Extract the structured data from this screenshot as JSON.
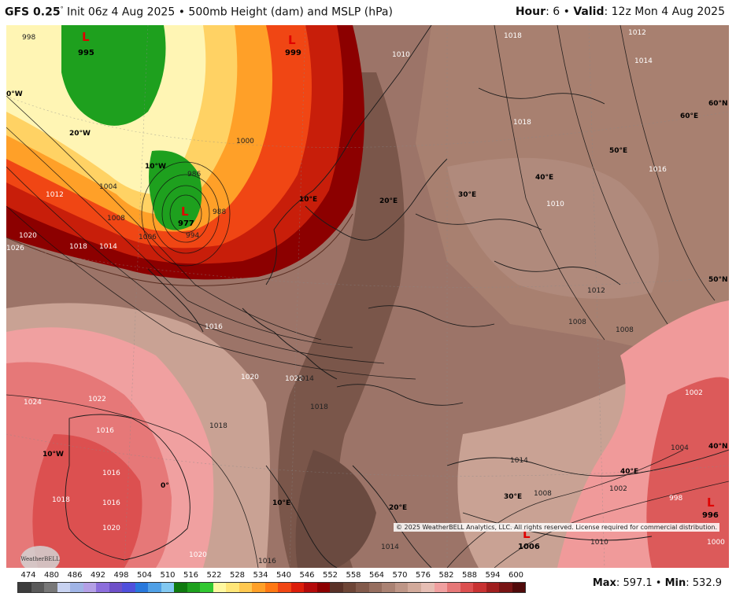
{
  "header": {
    "model": "GFS 0.25",
    "init_text": "Init 06z 4 Aug 2025",
    "separator": "•",
    "product": "500mb Height (dam) and MSLP (hPa)",
    "hour_label": "Hour",
    "hour_value": "6",
    "valid_label": "Valid",
    "valid_value": "12z Mon 4 Aug 2025"
  },
  "map": {
    "copyright": "© 2025 WeatherBELL Analytics, LLC. All rights reserved. License required for commercial distribution.",
    "logo_text": "WeatherBELL",
    "lows": [
      {
        "symbol": "L",
        "value": "995"
      },
      {
        "symbol": "L",
        "value": "999"
      },
      {
        "symbol": "L",
        "value": "977"
      },
      {
        "symbol": "L",
        "value": "1006"
      },
      {
        "symbol": "L",
        "value": "996"
      }
    ],
    "isobar_labels": [
      "998",
      "1018",
      "1012",
      "1014",
      "1010",
      "1000",
      "1004",
      "1008",
      "1012",
      "1020",
      "1018",
      "1014",
      "1006",
      "994",
      "988",
      "986",
      "1022",
      "1016",
      "1020",
      "1022",
      "1024",
      "1018",
      "1016",
      "1016",
      "1016",
      "1020",
      "1018",
      "1014",
      "1018",
      "1016",
      "1008",
      "1008",
      "1012",
      "1018",
      "1010",
      "1014",
      "1014",
      "1008",
      "1002",
      "998",
      "1000",
      "1004",
      "1002",
      "1020",
      "1026",
      "1016",
      "1010"
    ],
    "grid_labels": [
      "0°W",
      "20°W",
      "10°W",
      "10°E",
      "20°E",
      "30°E",
      "40°E",
      "50°E",
      "60°E",
      "60°N",
      "50°N",
      "40°N",
      "10°W",
      "0°",
      "10°E",
      "20°E",
      "30°E",
      "40°E"
    ]
  },
  "legend": {
    "values": [
      "474",
      "480",
      "486",
      "492",
      "498",
      "504",
      "510",
      "516",
      "522",
      "528",
      "534",
      "540",
      "546",
      "552",
      "558",
      "564",
      "570",
      "576",
      "582",
      "588",
      "594",
      "600"
    ],
    "colors": [
      "#3c3c3c",
      "#5a5a5a",
      "#787878",
      "#c8d2f0",
      "#a0b4e6",
      "#b4a0e6",
      "#8c6edc",
      "#6e50c8",
      "#5050dc",
      "#2878dc",
      "#50a0e6",
      "#82c8f0",
      "#0f7a0f",
      "#1ea01e",
      "#32c832",
      "#fff8a0",
      "#ffe678",
      "#ffc850",
      "#ffa028",
      "#ff7814",
      "#f04614",
      "#dc1e0a",
      "#b40a0a",
      "#8c0000",
      "#5a3228",
      "#6e4637",
      "#825a4b",
      "#966e5f",
      "#aa8273",
      "#be9687",
      "#d2aa9b",
      "#e6beb4",
      "#f0a0a0",
      "#e67878",
      "#dc5050",
      "#c83232",
      "#a01e1e",
      "#781414",
      "#500a0a"
    ],
    "max_label": "Max",
    "max_value": "597.1",
    "min_label": "Min",
    "min_value": "532.9"
  }
}
